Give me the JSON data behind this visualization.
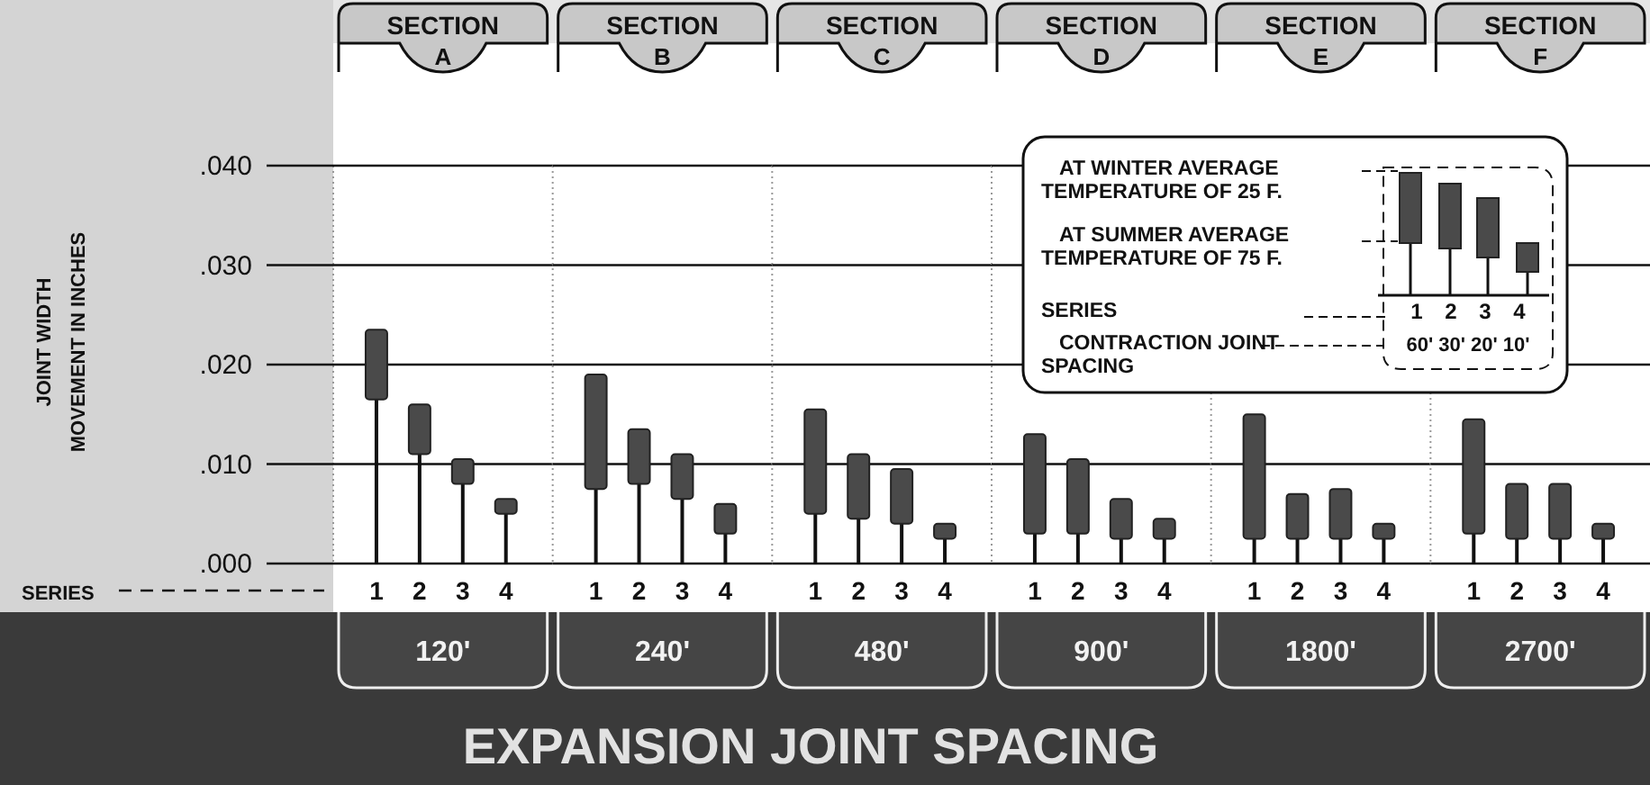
{
  "chart_data": [
    {
      "type": "bar",
      "title": "SECTION A",
      "xlabel": "120'",
      "ylabel": "JOINT WIDTH MOVEMENT IN INCHES",
      "annotations": [
        "SERIES",
        "EXPANSION JOINT SPACING"
      ],
      "categories": [
        "1",
        "2",
        "3",
        "4"
      ],
      "base": [
        0.0165,
        0.011,
        0.008,
        0.005
      ],
      "values": [
        0.007,
        0.005,
        0.0025,
        0.0015
      ],
      "color": "#4a4a4a",
      "ylim": [
        0,
        0.04
      ],
      "yticks": [
        {
          "value": 0,
          "label": ".000"
        },
        {
          "value": 0.01,
          "label": ".010"
        },
        {
          "value": 0.02,
          "label": ".020"
        },
        {
          "value": 0.03,
          "label": ".030"
        },
        {
          "value": 0.04,
          "label": ".040"
        }
      ],
      "grid": "y"
    },
    {
      "type": "bar",
      "title": "SECTION B",
      "xlabel": "240'",
      "categories": [
        "1",
        "2",
        "3",
        "4"
      ],
      "base": [
        0.0075,
        0.008,
        0.0065,
        0.003
      ],
      "values": [
        0.0115,
        0.0055,
        0.0045,
        0.003
      ],
      "color": "#4a4a4a",
      "ylim": [
        0,
        0.04
      ],
      "yticks": [
        {
          "value": 0,
          "label": null
        },
        {
          "value": 0.01,
          "label": null
        },
        {
          "value": 0.02,
          "label": null
        },
        {
          "value": 0.03,
          "label": null
        },
        {
          "value": 0.04,
          "label": null
        }
      ],
      "grid": "y",
      "tick_labels": "x"
    },
    {
      "type": "bar",
      "title": "SECTION C",
      "xlabel": "480'",
      "categories": [
        "1",
        "2",
        "3",
        "4"
      ],
      "base": [
        0.005,
        0.0045,
        0.004,
        0.0025
      ],
      "values": [
        0.0105,
        0.0065,
        0.0055,
        0.0015
      ],
      "color": "#4a4a4a",
      "ylim": [
        0,
        0.04
      ],
      "yticks": [
        {
          "value": 0,
          "label": null
        },
        {
          "value": 0.01,
          "label": null
        },
        {
          "value": 0.02,
          "label": null
        },
        {
          "value": 0.03,
          "label": null
        },
        {
          "value": 0.04,
          "label": null
        }
      ],
      "grid": "y",
      "tick_labels": "x"
    },
    {
      "type": "bar",
      "title": "SECTION D",
      "xlabel": "900'",
      "categories": [
        "1",
        "2",
        "3",
        "4"
      ],
      "base": [
        0.003,
        0.003,
        0.0025,
        0.0025
      ],
      "values": [
        0.01,
        0.0075,
        0.004,
        0.002
      ],
      "color": "#4a4a4a",
      "ylim": [
        0,
        0.04
      ],
      "yticks": [
        {
          "value": 0,
          "label": null
        },
        {
          "value": 0.01,
          "label": null
        },
        {
          "value": 0.02,
          "label": null
        },
        {
          "value": 0.03,
          "label": null
        },
        {
          "value": 0.04,
          "label": null
        }
      ],
      "grid": "y",
      "tick_labels": "x"
    },
    {
      "type": "bar",
      "title": "SECTION E",
      "xlabel": "1800'",
      "categories": [
        "1",
        "2",
        "3",
        "4"
      ],
      "base": [
        0.0025,
        0.0025,
        0.0025,
        0.0025
      ],
      "values": [
        0.0125,
        0.0045,
        0.005,
        0.0015
      ],
      "color": "#4a4a4a",
      "ylim": [
        0,
        0.04
      ],
      "yticks": [
        {
          "value": 0,
          "label": null
        },
        {
          "value": 0.01,
          "label": null
        },
        {
          "value": 0.02,
          "label": null
        },
        {
          "value": 0.03,
          "label": null
        },
        {
          "value": 0.04,
          "label": null
        }
      ],
      "grid": "y",
      "tick_labels": "x"
    },
    {
      "type": "bar",
      "title": "SECTION F",
      "xlabel": "2700'",
      "categories": [
        "1",
        "2",
        "3",
        "4"
      ],
      "base": [
        0.003,
        0.0025,
        0.0025,
        0.0025
      ],
      "values": [
        0.0115,
        0.0055,
        0.0055,
        0.0015
      ],
      "color": "#4a4a4a",
      "ylim": [
        0,
        0.04
      ],
      "yticks": [
        {
          "value": 0,
          "label": null
        },
        {
          "value": 0.01,
          "label": null
        },
        {
          "value": 0.02,
          "label": null
        },
        {
          "value": 0.03,
          "label": null
        },
        {
          "value": 0.04,
          "label": null
        }
      ],
      "grid": "y",
      "tick_labels": "x"
    },
    {
      "type": "other",
      "annotations": [
        "AT WINTER AVERAGE TEMPERATURE OF 25 F.",
        "AT SUMMER AVERAGE TEMPERATURE OF 75 F.",
        "SERIES",
        "CONTRACTION JOINT SPACING",
        "1 2 3 4",
        "60' 30' 20' 10'"
      ]
    }
  ]
}
